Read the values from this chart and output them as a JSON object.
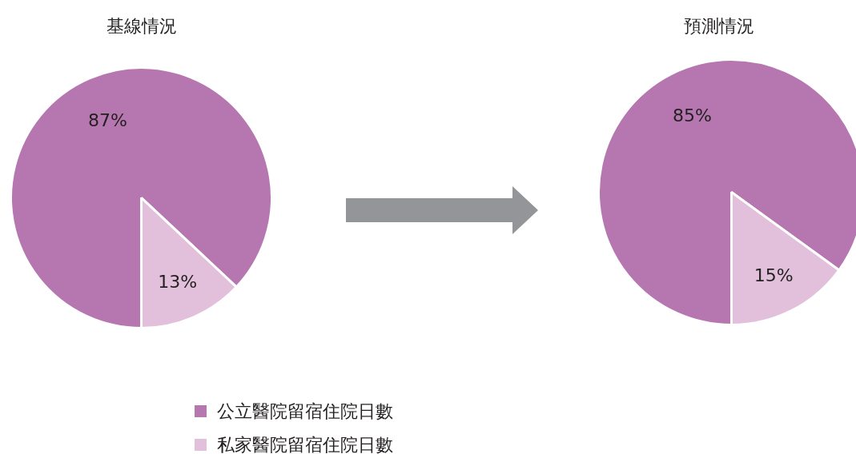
{
  "chart_data": [
    {
      "type": "pie",
      "title": "基線情況",
      "categories": [
        "公立醫院留宿住院日數",
        "私家醫院留宿住院日數"
      ],
      "values": [
        87,
        13
      ],
      "colors": [
        "#b677b0",
        "#e2c0dc"
      ],
      "value_labels": [
        "87%",
        "13%"
      ],
      "legend": "bottom"
    },
    {
      "type": "pie",
      "title": "預測情況",
      "categories": [
        null,
        null
      ],
      "values": [
        85,
        15
      ],
      "colors": [
        "#b677b0",
        "#e2c0dc"
      ],
      "value_labels": [
        "85%",
        "15%"
      ]
    }
  ]
}
